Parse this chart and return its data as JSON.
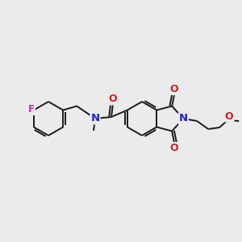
{
  "background_color": "#ebebeb",
  "bond_color": "#1a1a1a",
  "atom_colors": {
    "N": "#2222cc",
    "O": "#cc2222",
    "F": "#cc22cc"
  },
  "figsize": [
    3.0,
    3.0
  ],
  "dpi": 100
}
